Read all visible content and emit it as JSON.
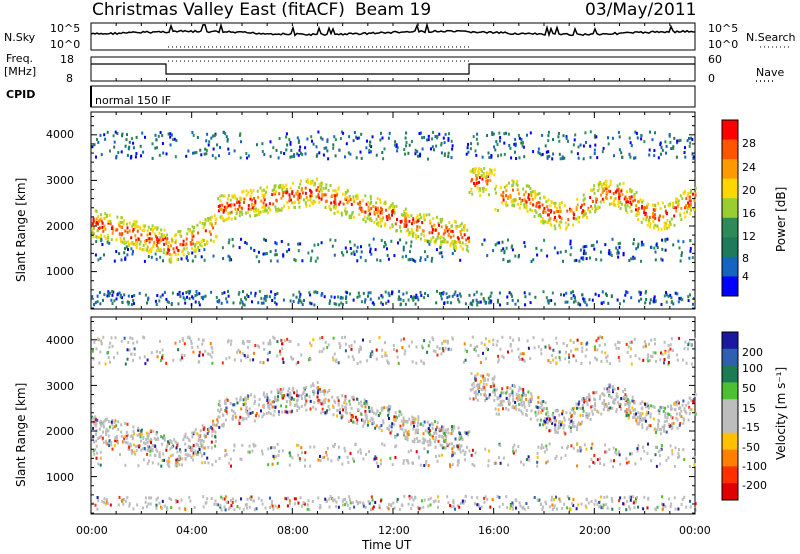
{
  "header": {
    "title": "Christmas Valley East (fitACF)",
    "beam": "Beam 19",
    "date": "03/May/2011"
  },
  "top_panels": {
    "nsky_label": "N.Sky",
    "nsky_ticks": [
      "10^5",
      "10^0"
    ],
    "nsearch_label": "N.Search",
    "nsearch_ticks": [
      "10^5",
      "10^0"
    ],
    "freq_label_1": "Freq.",
    "freq_label_2": "[MHz]",
    "freq_ticks": [
      "18",
      "8"
    ],
    "nave_label": "Nave",
    "nave_ticks": [
      "60",
      "0"
    ],
    "cpid_label": "CPID",
    "cpid_value": "normal 150 IF"
  },
  "chart_data": [
    {
      "type": "heatmap",
      "name": "power",
      "ylabel": "Slant Range [km]",
      "yticks": [
        "4000",
        "3000",
        "2000",
        "1000"
      ],
      "ylim": [
        180,
        4500
      ],
      "colorbar_label": "Power [dB]",
      "colorbar_ticks": [
        "28",
        "24",
        "20",
        "16",
        "12",
        "8",
        "4"
      ],
      "colorbar_colors": [
        "#ff0000",
        "#ff5500",
        "#ff9900",
        "#ffd700",
        "#9acd32",
        "#2e8b57",
        "#1e7a5a",
        "#1565c0",
        "#0000ff"
      ]
    },
    {
      "type": "heatmap",
      "name": "velocity",
      "ylabel": "Slant Range [km]",
      "yticks": [
        "4000",
        "3000",
        "2000",
        "1000"
      ],
      "ylim": [
        180,
        4500
      ],
      "colorbar_label": "Velocity [m s⁻¹]",
      "colorbar_ticks": [
        "200",
        "100",
        "50",
        "15",
        "-15",
        "-50",
        "-100",
        "-200"
      ],
      "colorbar_colors": [
        "#1a1aa0",
        "#2e5fb0",
        "#1e7a50",
        "#4cc030",
        "#bdbdbd",
        "#bdbdbd",
        "#ffc000",
        "#ff8000",
        "#ff3000",
        "#e00000"
      ]
    }
  ],
  "xaxis": {
    "label": "Time UT",
    "ticks": [
      "00:00",
      "04:00",
      "08:00",
      "12:00",
      "16:00",
      "20:00",
      "00:00"
    ]
  }
}
